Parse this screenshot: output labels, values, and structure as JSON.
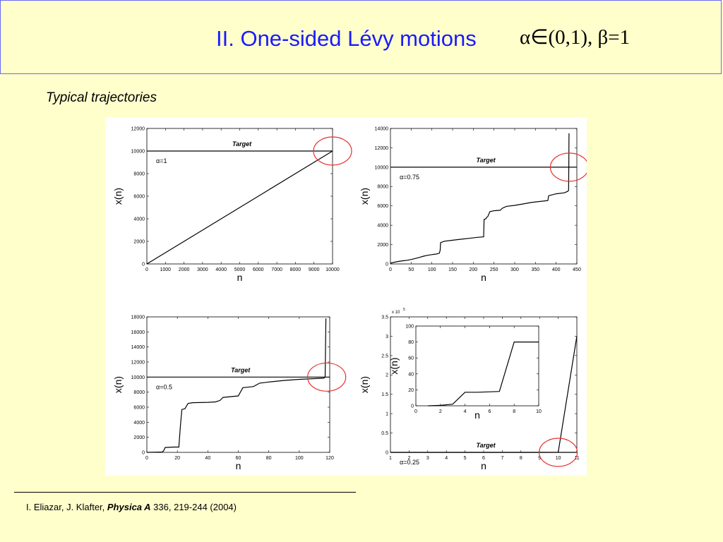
{
  "header": {
    "title": "II. One-sided  Lévy motions",
    "math": "α∈(0,1), β=1"
  },
  "subtitle": "Typical trajectories",
  "citation": {
    "authors": "I. Eliazar, J. Klafter, ",
    "journal": "Physica A",
    "rest": " 336, 219-244 (2004)"
  },
  "colors": {
    "title": "#1a1aff",
    "highlight": "#e83030",
    "background": "#ffffcc"
  },
  "chart_data": [
    {
      "type": "line",
      "xlabel": "n",
      "ylabel": "x(n)",
      "annotation": "α=1",
      "target_label": "Target",
      "xlim": [
        0,
        10000
      ],
      "ylim": [
        0,
        12000
      ],
      "xticks": [
        0,
        1000,
        2000,
        3000,
        4000,
        5000,
        6000,
        7000,
        8000,
        9000,
        10000
      ],
      "yticks": [
        0,
        2000,
        4000,
        6000,
        8000,
        10000,
        12000
      ],
      "target_y": 10000,
      "highlight": [
        10000,
        10000
      ],
      "x": [
        0,
        10000
      ],
      "y": [
        0,
        10000
      ]
    },
    {
      "type": "line",
      "xlabel": "n",
      "ylabel": "x(n)",
      "annotation": "α=0.75",
      "target_label": "Target",
      "xlim": [
        0,
        450
      ],
      "ylim": [
        0,
        14000
      ],
      "xticks": [
        0,
        50,
        100,
        150,
        200,
        250,
        300,
        350,
        400,
        450
      ],
      "yticks": [
        0,
        2000,
        4000,
        6000,
        8000,
        10000,
        12000,
        14000
      ],
      "target_y": 10000,
      "highlight": [
        432,
        10000
      ],
      "x": [
        0,
        10,
        20,
        30,
        40,
        50,
        60,
        70,
        80,
        90,
        100,
        110,
        118,
        120,
        121,
        130,
        150,
        170,
        190,
        210,
        225,
        226,
        230,
        232,
        235,
        240,
        250,
        265,
        270,
        280,
        300,
        320,
        340,
        360,
        380,
        382,
        400,
        420,
        428,
        430,
        430.5,
        431
      ],
      "y": [
        80,
        180,
        260,
        330,
        380,
        460,
        560,
        680,
        800,
        900,
        960,
        1020,
        1100,
        1400,
        2200,
        2350,
        2450,
        2550,
        2650,
        2750,
        2800,
        4600,
        4650,
        4800,
        4900,
        5400,
        5500,
        5550,
        5750,
        5950,
        6050,
        6200,
        6350,
        6450,
        6550,
        7050,
        7250,
        7350,
        7500,
        7600,
        10000,
        13500
      ]
    },
    {
      "type": "line",
      "xlabel": "n",
      "ylabel": "x(n)",
      "annotation": "α=0.5",
      "target_label": "Target",
      "xlim": [
        0,
        120
      ],
      "ylim": [
        0,
        18000
      ],
      "xticks": [
        0,
        20,
        40,
        60,
        80,
        100,
        120
      ],
      "yticks": [
        0,
        2000,
        4000,
        6000,
        8000,
        10000,
        12000,
        14000,
        16000,
        18000
      ],
      "target_y": 10000,
      "highlight": [
        118,
        10000
      ],
      "x": [
        0,
        5,
        10,
        11,
        12,
        17,
        21,
        22,
        23,
        24,
        25,
        27,
        30,
        40,
        45,
        48,
        50,
        60,
        63,
        68,
        70,
        74,
        80,
        90,
        100,
        110,
        116,
        117,
        117.5
      ],
      "y": [
        0,
        30,
        50,
        200,
        650,
        700,
        700,
        3500,
        5700,
        5750,
        5800,
        6500,
        6600,
        6650,
        6700,
        6900,
        7300,
        7500,
        8600,
        8700,
        8750,
        9200,
        9350,
        9550,
        9700,
        9800,
        9850,
        10000,
        17800
      ]
    },
    {
      "type": "line",
      "xlabel": "n",
      "ylabel": "x(n)",
      "annotation": "α=0.25",
      "target_label": "Target",
      "multiplier": "x 10",
      "multiplier_exp": "5",
      "xlim": [
        1,
        11
      ],
      "ylim": [
        0,
        3.5
      ],
      "xticks": [
        1,
        2,
        3,
        4,
        5,
        6,
        7,
        8,
        9,
        10,
        11
      ],
      "yticks": [
        0,
        0.5,
        1,
        1.5,
        2,
        2.5,
        3,
        3.5
      ],
      "target_y": 0.0001,
      "highlight": [
        10,
        0.0001
      ],
      "x": [
        1,
        2,
        3,
        4,
        5,
        6,
        7,
        8,
        9,
        10,
        11
      ],
      "y": [
        0,
        0,
        2e-05,
        0.00017,
        0.00017,
        0.00017,
        0.00018,
        0.0008,
        0.0008,
        0.001,
        3.0
      ],
      "inset": {
        "xlabel": "n",
        "ylabel": "x(n)",
        "xlim": [
          0,
          10
        ],
        "ylim": [
          0,
          100
        ],
        "xticks": [
          0,
          2,
          4,
          6,
          8,
          10
        ],
        "yticks": [
          0,
          20,
          40,
          60,
          80,
          100
        ],
        "x": [
          1,
          2,
          3,
          4,
          5,
          6,
          6.8,
          8,
          9,
          10
        ],
        "y": [
          0,
          0.5,
          2,
          17,
          17,
          17.5,
          18,
          80,
          80,
          80
        ]
      }
    }
  ]
}
